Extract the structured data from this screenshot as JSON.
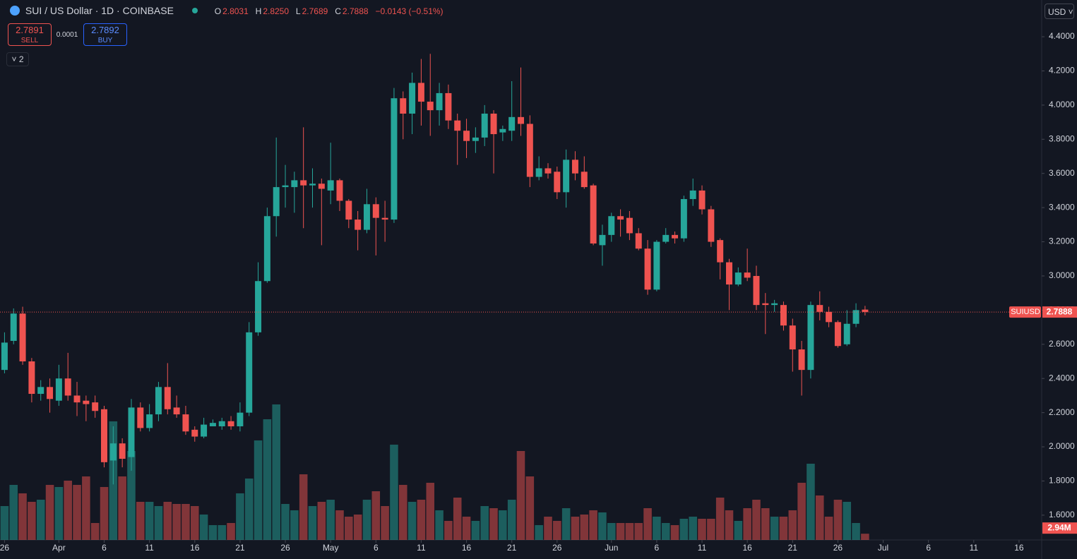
{
  "header": {
    "symbol": "SUI / US Dollar · 1D · COINBASE",
    "o_key": "O",
    "o": "2.8031",
    "h_key": "H",
    "h": "2.8250",
    "l_key": "L",
    "l": "2.7689",
    "c_key": "C",
    "c": "2.7888",
    "change": "−0.0143 (−0.51%)",
    "sell_price": "2.7891",
    "sell": "SELL",
    "spread": "0.0001",
    "buy_price": "2.7892",
    "buy": "BUY",
    "indicators": "2",
    "currency": "USD"
  },
  "chart_data": {
    "type": "candlestick",
    "up_color": "#26a69a",
    "down_color": "#ef5350",
    "grid": false,
    "symbol_tag": "SUIUSD",
    "price_label": "2.7888",
    "volume_label": "2.94M",
    "open": [
      2.45,
      2.62,
      2.78,
      2.5,
      2.31,
      2.35,
      2.27,
      2.4,
      2.3,
      2.27,
      2.26,
      2.22,
      1.92,
      2.02,
      1.94,
      2.23,
      2.11,
      2.19,
      2.35,
      2.23,
      2.19,
      2.1,
      2.06,
      2.12,
      2.12,
      2.15,
      2.12,
      2.2,
      2.67,
      2.97,
      3.35,
      3.52,
      3.52,
      3.56,
      3.53,
      3.54,
      3.5,
      3.56,
      3.44,
      3.33,
      3.27,
      3.42,
      3.34,
      3.33,
      4.04,
      3.95,
      4.13,
      4.02,
      3.97,
      4.07,
      3.91,
      3.85,
      3.79,
      3.81,
      3.95,
      3.84,
      3.85,
      3.93,
      3.89,
      3.58,
      3.63,
      3.61,
      3.49,
      3.68,
      3.61,
      3.53,
      3.18,
      3.24,
      3.35,
      3.34,
      3.25,
      3.16,
      2.92,
      3.2,
      3.24,
      3.22,
      3.45,
      3.5,
      3.39,
      3.21,
      3.08,
      2.95,
      3.02,
      3.0,
      2.84,
      2.83,
      2.83,
      2.71,
      2.57,
      2.45,
      2.83,
      2.79,
      2.73,
      2.6,
      2.72,
      2.8031
    ],
    "high": [
      2.67,
      2.81,
      2.82,
      2.52,
      2.39,
      2.4,
      2.48,
      2.55,
      2.38,
      2.3,
      2.3,
      2.24,
      2.12,
      2.05,
      2.28,
      2.26,
      2.25,
      2.38,
      2.49,
      2.3,
      2.24,
      2.12,
      2.17,
      2.16,
      2.17,
      2.18,
      2.26,
      2.73,
      3.08,
      3.4,
      3.81,
      3.65,
      3.61,
      3.87,
      3.63,
      3.57,
      3.78,
      3.57,
      3.45,
      3.38,
      3.51,
      3.46,
      3.44,
      4.1,
      4.08,
      4.19,
      4.27,
      4.3,
      4.13,
      4.12,
      3.95,
      3.92,
      3.87,
      4.0,
      3.97,
      3.88,
      4.14,
      4.22,
      3.94,
      3.7,
      3.66,
      3.64,
      3.74,
      3.73,
      3.7,
      3.54,
      3.3,
      3.37,
      3.39,
      3.38,
      3.28,
      3.21,
      3.21,
      3.28,
      3.26,
      3.47,
      3.57,
      3.53,
      3.41,
      3.22,
      3.1,
      3.05,
      3.16,
      3.06,
      2.9,
      2.86,
      2.85,
      2.75,
      2.62,
      2.85,
      2.91,
      2.82,
      2.74,
      2.8,
      2.84,
      2.825
    ],
    "low": [
      2.43,
      2.6,
      2.48,
      2.26,
      2.27,
      2.2,
      2.24,
      2.27,
      2.18,
      2.15,
      2.17,
      1.88,
      1.78,
      1.88,
      1.86,
      2.09,
      2.09,
      2.15,
      2.19,
      2.17,
      2.07,
      2.03,
      2.05,
      2.12,
      2.1,
      2.1,
      2.09,
      2.18,
      2.65,
      2.96,
      3.23,
      3.4,
      3.37,
      3.28,
      3.4,
      3.18,
      3.42,
      3.38,
      3.28,
      3.15,
      3.25,
      3.12,
      3.2,
      3.31,
      3.8,
      3.83,
      3.88,
      3.82,
      3.88,
      3.86,
      3.65,
      3.69,
      3.72,
      3.76,
      3.6,
      3.79,
      3.79,
      3.82,
      3.52,
      3.56,
      3.57,
      3.45,
      3.4,
      3.56,
      3.51,
      3.18,
      3.06,
      3.2,
      3.23,
      3.21,
      3.15,
      2.89,
      2.91,
      3.19,
      3.19,
      3.2,
      3.41,
      3.36,
      3.17,
      2.98,
      2.8,
      2.94,
      2.97,
      2.8,
      2.66,
      2.79,
      2.68,
      2.44,
      2.3,
      2.4,
      2.74,
      2.7,
      2.58,
      2.59,
      2.7,
      2.7689
    ],
    "close": [
      2.61,
      2.78,
      2.5,
      2.31,
      2.35,
      2.28,
      2.4,
      2.3,
      2.26,
      2.25,
      2.21,
      1.91,
      2.02,
      1.93,
      2.23,
      2.11,
      2.19,
      2.35,
      2.22,
      2.19,
      2.09,
      2.06,
      2.13,
      2.14,
      2.15,
      2.12,
      2.2,
      2.67,
      2.97,
      3.35,
      3.52,
      3.53,
      3.56,
      3.53,
      3.54,
      3.51,
      3.56,
      3.44,
      3.33,
      3.27,
      3.42,
      3.34,
      3.33,
      4.04,
      3.95,
      4.13,
      4.02,
      3.97,
      4.07,
      3.91,
      3.85,
      3.79,
      3.81,
      3.95,
      3.83,
      3.86,
      3.93,
      3.89,
      3.58,
      3.63,
      3.6,
      3.49,
      3.68,
      3.6,
      3.52,
      3.19,
      3.24,
      3.35,
      3.33,
      3.25,
      3.16,
      2.92,
      3.2,
      3.24,
      3.22,
      3.45,
      3.5,
      3.39,
      3.2,
      3.08,
      2.95,
      3.02,
      2.99,
      2.83,
      2.83,
      2.84,
      2.71,
      2.57,
      2.45,
      2.83,
      2.79,
      2.73,
      2.59,
      2.72,
      2.8,
      2.7888
    ],
    "volume": [
      16,
      26,
      22,
      18,
      19,
      26,
      25,
      28,
      26,
      30,
      8,
      25,
      56,
      30,
      42,
      18,
      18,
      16,
      18,
      17,
      17,
      16,
      12,
      7,
      7,
      8,
      22,
      29,
      47,
      57,
      64,
      17,
      14,
      31,
      16,
      18,
      19,
      14,
      11,
      12,
      19,
      23,
      16,
      45,
      26,
      18,
      19,
      27,
      14,
      9,
      20,
      11,
      9,
      16,
      15,
      14,
      19,
      42,
      30,
      7,
      11,
      9,
      15,
      11,
      12,
      14,
      13,
      8,
      8,
      8,
      8,
      15,
      11,
      8,
      7,
      10,
      11,
      10,
      10,
      20,
      14,
      9,
      15,
      19,
      15,
      11,
      11,
      14,
      27,
      36,
      21,
      11,
      19,
      18,
      8,
      2.94
    ],
    "vlim": [
      0,
      65
    ],
    "ylim": [
      1.455,
      4.615
    ],
    "yticks": [
      {
        "value": 1.6,
        "label": "1.6000"
      },
      {
        "value": 1.8,
        "label": "1.8000"
      },
      {
        "value": 2.0,
        "label": "2.0000"
      },
      {
        "value": 2.2,
        "label": "2.2000"
      },
      {
        "value": 2.4,
        "label": "2.4000"
      },
      {
        "value": 2.6,
        "label": "2.6000"
      },
      {
        "value": 2.8,
        "label": "2.8000"
      },
      {
        "value": 3.0,
        "label": "3.0000"
      },
      {
        "value": 3.2,
        "label": "3.2000"
      },
      {
        "value": 3.4,
        "label": "3.4000"
      },
      {
        "value": 3.6,
        "label": "3.6000"
      },
      {
        "value": 3.8,
        "label": "3.8000"
      },
      {
        "value": 4.0,
        "label": "4.0000"
      },
      {
        "value": 4.2,
        "label": "4.2000"
      },
      {
        "value": 4.4,
        "label": "4.4000"
      }
    ],
    "xlim": [
      -0.5,
      114.5
    ],
    "xticks": [
      {
        "value": 0,
        "label": "26"
      },
      {
        "value": 6,
        "label": "Apr"
      },
      {
        "value": 11,
        "label": "6"
      },
      {
        "value": 16,
        "label": "11"
      },
      {
        "value": 21,
        "label": "16"
      },
      {
        "value": 26,
        "label": "21"
      },
      {
        "value": 31,
        "label": "26"
      },
      {
        "value": 36,
        "label": "May"
      },
      {
        "value": 41,
        "label": "6"
      },
      {
        "value": 46,
        "label": "11"
      },
      {
        "value": 51,
        "label": "16"
      },
      {
        "value": 56,
        "label": "21"
      },
      {
        "value": 61,
        "label": "26"
      },
      {
        "value": 67,
        "label": "Jun"
      },
      {
        "value": 72,
        "label": "6"
      },
      {
        "value": 77,
        "label": "11"
      },
      {
        "value": 82,
        "label": "16"
      },
      {
        "value": 87,
        "label": "21"
      },
      {
        "value": 92,
        "label": "26"
      },
      {
        "value": 97,
        "label": "Jul"
      },
      {
        "value": 102,
        "label": "6"
      },
      {
        "value": 107,
        "label": "11"
      },
      {
        "value": 112,
        "label": "16"
      }
    ]
  }
}
